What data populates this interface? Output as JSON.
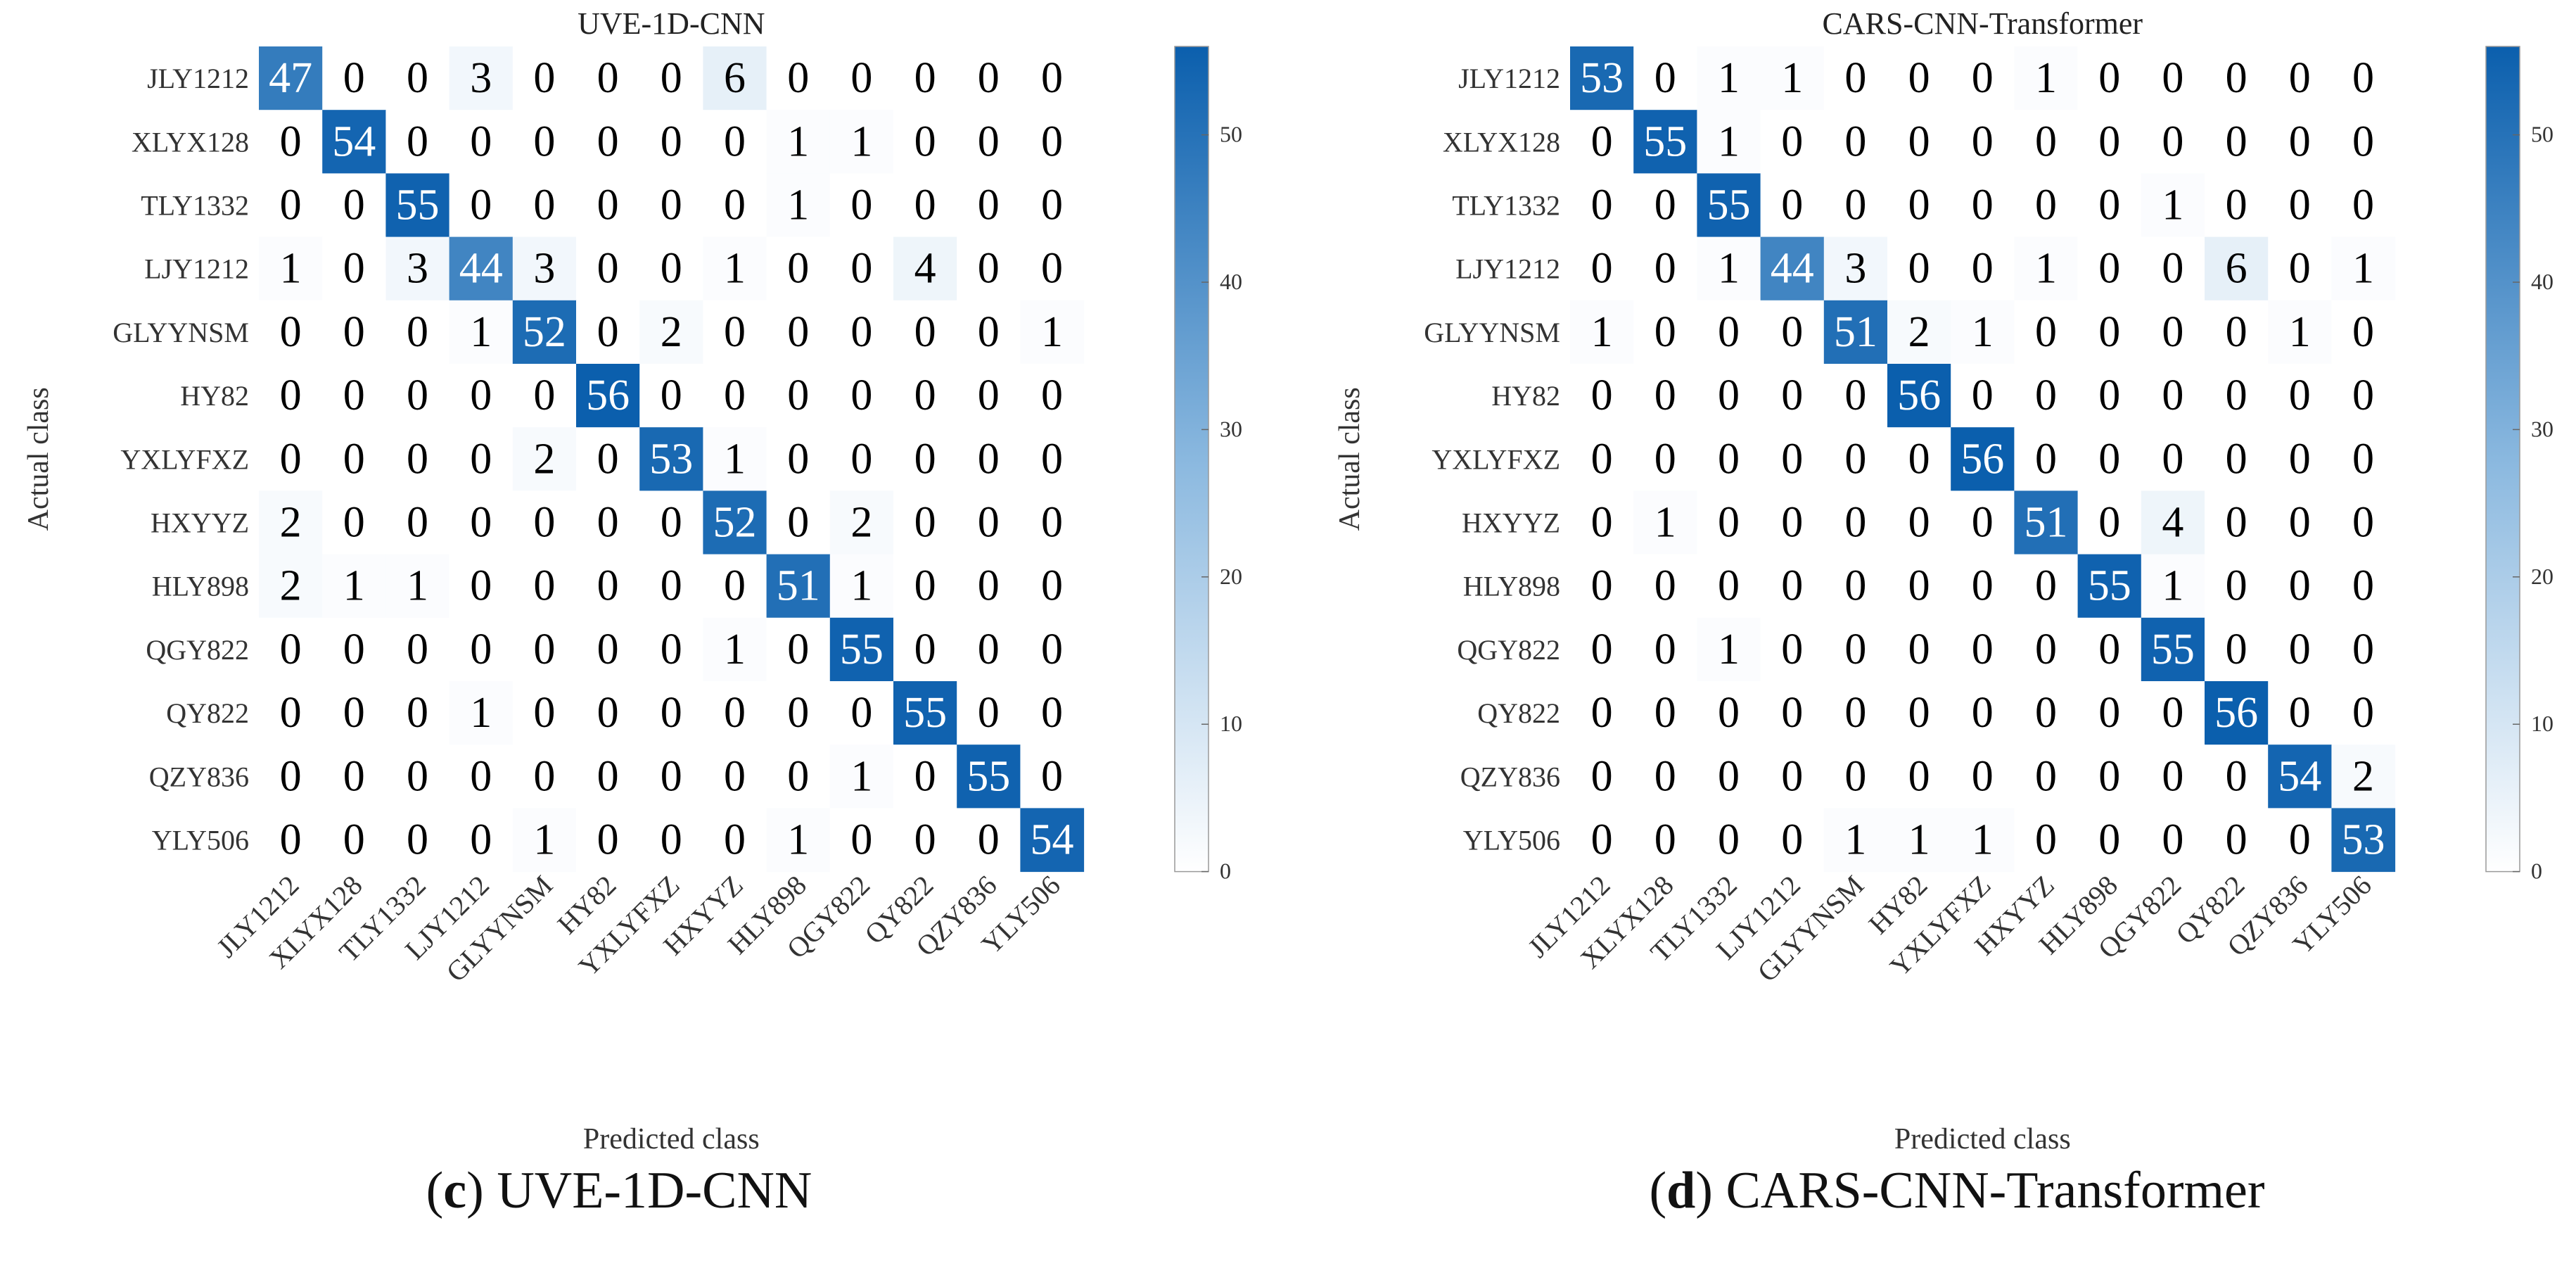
{
  "colormap": {
    "low": "#ffffff",
    "mid": "#8ab8df",
    "high": "#0b5fad",
    "text_dark": "#000000",
    "text_light": "#ffffff"
  },
  "chart_data": [
    {
      "type": "heatmap",
      "title": "UVE-1D-CNN",
      "caption_letter": "c",
      "caption_text": "UVE-1D-CNN",
      "xlabel": "Predicted class",
      "ylabel": "Actual class",
      "classes": [
        "JLY1212",
        "XLYX128",
        "TLY1332",
        "LJY1212",
        "GLYYNSM",
        "HY82",
        "YXLYFXZ",
        "HXYYZ",
        "HLY898",
        "QGY822",
        "QY822",
        "QZY836",
        "YLY506"
      ],
      "colorbar": {
        "min": 0,
        "max": 56,
        "ticks": [
          0,
          10,
          20,
          30,
          40,
          50
        ]
      },
      "matrix": [
        [
          47,
          0,
          0,
          3,
          0,
          0,
          0,
          6,
          0,
          0,
          0,
          0,
          0
        ],
        [
          0,
          54,
          0,
          0,
          0,
          0,
          0,
          0,
          1,
          1,
          0,
          0,
          0
        ],
        [
          0,
          0,
          55,
          0,
          0,
          0,
          0,
          0,
          1,
          0,
          0,
          0,
          0
        ],
        [
          1,
          0,
          3,
          44,
          3,
          0,
          0,
          1,
          0,
          0,
          4,
          0,
          0
        ],
        [
          0,
          0,
          0,
          1,
          52,
          0,
          2,
          0,
          0,
          0,
          0,
          0,
          1
        ],
        [
          0,
          0,
          0,
          0,
          0,
          56,
          0,
          0,
          0,
          0,
          0,
          0,
          0
        ],
        [
          0,
          0,
          0,
          0,
          2,
          0,
          53,
          1,
          0,
          0,
          0,
          0,
          0
        ],
        [
          2,
          0,
          0,
          0,
          0,
          0,
          0,
          52,
          0,
          2,
          0,
          0,
          0
        ],
        [
          2,
          1,
          1,
          0,
          0,
          0,
          0,
          0,
          51,
          1,
          0,
          0,
          0
        ],
        [
          0,
          0,
          0,
          0,
          0,
          0,
          0,
          1,
          0,
          55,
          0,
          0,
          0
        ],
        [
          0,
          0,
          0,
          1,
          0,
          0,
          0,
          0,
          0,
          0,
          55,
          0,
          0
        ],
        [
          0,
          0,
          0,
          0,
          0,
          0,
          0,
          0,
          0,
          1,
          0,
          55,
          0
        ],
        [
          0,
          0,
          0,
          0,
          1,
          0,
          0,
          0,
          1,
          0,
          0,
          0,
          54
        ]
      ]
    },
    {
      "type": "heatmap",
      "title": "CARS-CNN-Transformer",
      "caption_letter": "d",
      "caption_text": "CARS-CNN-Transformer",
      "xlabel": "Predicted class",
      "ylabel": "Actual class",
      "classes": [
        "JLY1212",
        "XLYX128",
        "TLY1332",
        "LJY1212",
        "GLYYNSM",
        "HY82",
        "YXLYFXZ",
        "HXYYZ",
        "HLY898",
        "QGY822",
        "QY822",
        "QZY836",
        "YLY506"
      ],
      "colorbar": {
        "min": 0,
        "max": 56,
        "ticks": [
          0,
          10,
          20,
          30,
          40,
          50
        ]
      },
      "matrix": [
        [
          53,
          0,
          1,
          1,
          0,
          0,
          0,
          1,
          0,
          0,
          0,
          0,
          0
        ],
        [
          0,
          55,
          1,
          0,
          0,
          0,
          0,
          0,
          0,
          0,
          0,
          0,
          0
        ],
        [
          0,
          0,
          55,
          0,
          0,
          0,
          0,
          0,
          0,
          1,
          0,
          0,
          0
        ],
        [
          0,
          0,
          1,
          44,
          3,
          0,
          0,
          1,
          0,
          0,
          6,
          0,
          1
        ],
        [
          1,
          0,
          0,
          0,
          51,
          2,
          1,
          0,
          0,
          0,
          0,
          1,
          0
        ],
        [
          0,
          0,
          0,
          0,
          0,
          56,
          0,
          0,
          0,
          0,
          0,
          0,
          0
        ],
        [
          0,
          0,
          0,
          0,
          0,
          0,
          56,
          0,
          0,
          0,
          0,
          0,
          0
        ],
        [
          0,
          1,
          0,
          0,
          0,
          0,
          0,
          51,
          0,
          4,
          0,
          0,
          0
        ],
        [
          0,
          0,
          0,
          0,
          0,
          0,
          0,
          0,
          55,
          1,
          0,
          0,
          0
        ],
        [
          0,
          0,
          1,
          0,
          0,
          0,
          0,
          0,
          0,
          55,
          0,
          0,
          0
        ],
        [
          0,
          0,
          0,
          0,
          0,
          0,
          0,
          0,
          0,
          0,
          56,
          0,
          0
        ],
        [
          0,
          0,
          0,
          0,
          0,
          0,
          0,
          0,
          0,
          0,
          0,
          54,
          2
        ],
        [
          0,
          0,
          0,
          0,
          1,
          1,
          1,
          0,
          0,
          0,
          0,
          0,
          53
        ]
      ]
    }
  ]
}
